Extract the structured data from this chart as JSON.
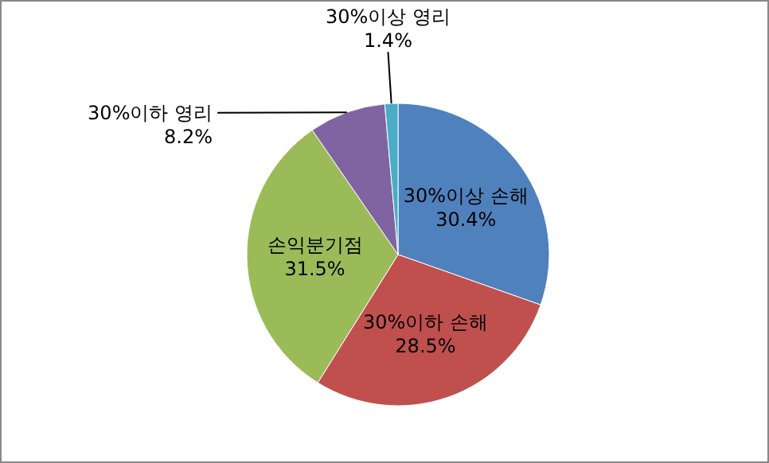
{
  "chart_data": {
    "type": "pie",
    "categories": [
      "30%이상 손해",
      "30%이하 손해",
      "손익분기점",
      "30%이하 영리",
      "30%이상 영리"
    ],
    "values": [
      30.4,
      28.5,
      31.5,
      8.2,
      1.4
    ],
    "colors": [
      "#4f81bd",
      "#c0504d",
      "#9bbb59",
      "#8064a2",
      "#4bacc6"
    ],
    "value_labels": [
      "30.4%",
      "28.5%",
      "31.5%",
      "8.2%",
      "1.4%"
    ]
  }
}
